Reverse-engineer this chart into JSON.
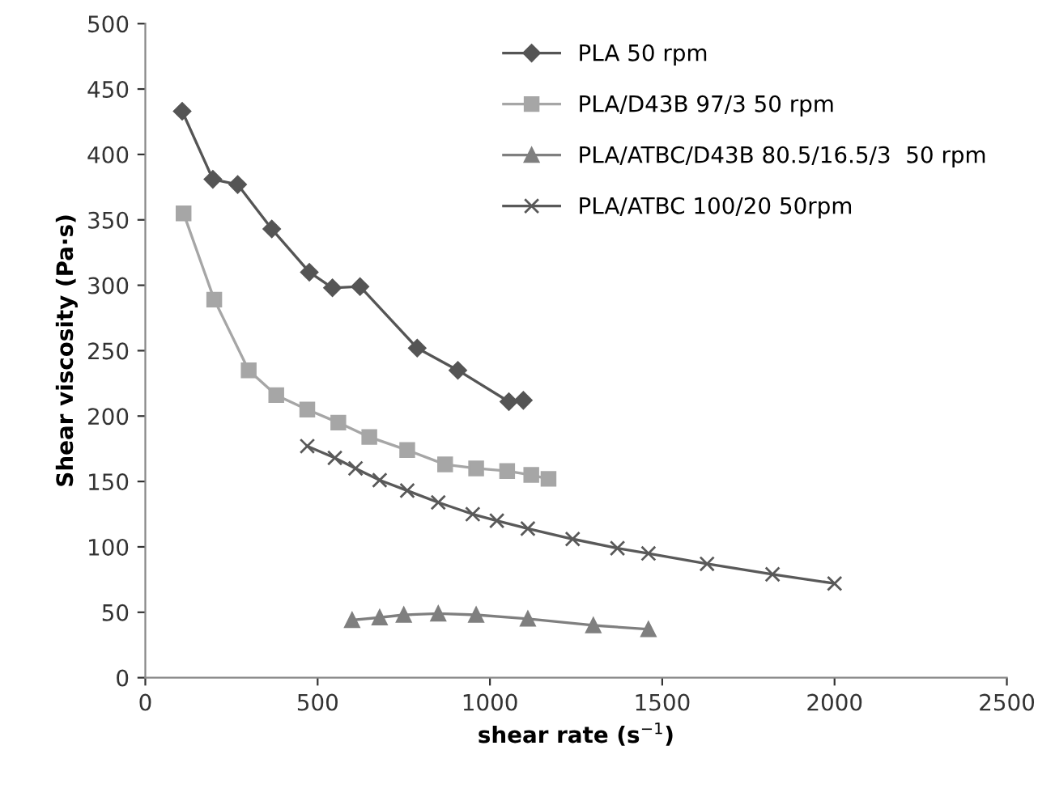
{
  "chart_data": {
    "type": "line",
    "xlabel": "shear rate (s$^{−1}$)",
    "ylabel": "Shear viscosity (Pa·s)",
    "xlim": [
      0,
      2500
    ],
    "xticks": [
      0,
      500,
      1000,
      1500,
      2000,
      2500
    ],
    "ylim": [
      0,
      500
    ],
    "yticks": [
      0,
      50,
      100,
      150,
      200,
      250,
      300,
      350,
      400,
      450,
      500
    ],
    "grid": false,
    "legend": "top right",
    "series": [
      {
        "name": "PLA 50 rpm",
        "color": "#555555",
        "marker": "diamond",
        "x": [
          107,
          196,
          268,
          367,
          476,
          543,
          623,
          789,
          907,
          1055,
          1097
        ],
        "values": [
          433,
          381,
          377,
          343,
          310,
          298,
          299,
          252,
          235,
          211,
          212
        ]
      },
      {
        "name": "PLA/D43B 97/3 50 rpm",
        "color": "#a6a6a6",
        "marker": "square",
        "x": [
          111,
          200,
          300,
          380,
          470,
          560,
          650,
          760,
          870,
          960,
          1050,
          1120,
          1170
        ],
        "values": [
          355,
          289,
          235,
          216,
          205,
          195,
          184,
          174,
          163,
          160,
          158,
          155,
          152
        ]
      },
      {
        "name": "PLA/ATBC/D43B 80.5/16.5/3  50 rpm",
        "color": "#7f7f7f",
        "marker": "triangle",
        "x": [
          600,
          680,
          750,
          850,
          960,
          1110,
          1300,
          1460
        ],
        "values": [
          44,
          46,
          48,
          49,
          48,
          45,
          40,
          37
        ]
      },
      {
        "name": "PLA/ATBC 100/20 50rpm",
        "color": "#595959",
        "marker": "cross",
        "x": [
          470,
          550,
          610,
          680,
          760,
          850,
          950,
          1020,
          1110,
          1240,
          1370,
          1460,
          1630,
          1820,
          2000
        ],
        "values": [
          177,
          168,
          160,
          151,
          143,
          134,
          125,
          120,
          114,
          106,
          99,
          95,
          87,
          79,
          72
        ]
      }
    ]
  }
}
